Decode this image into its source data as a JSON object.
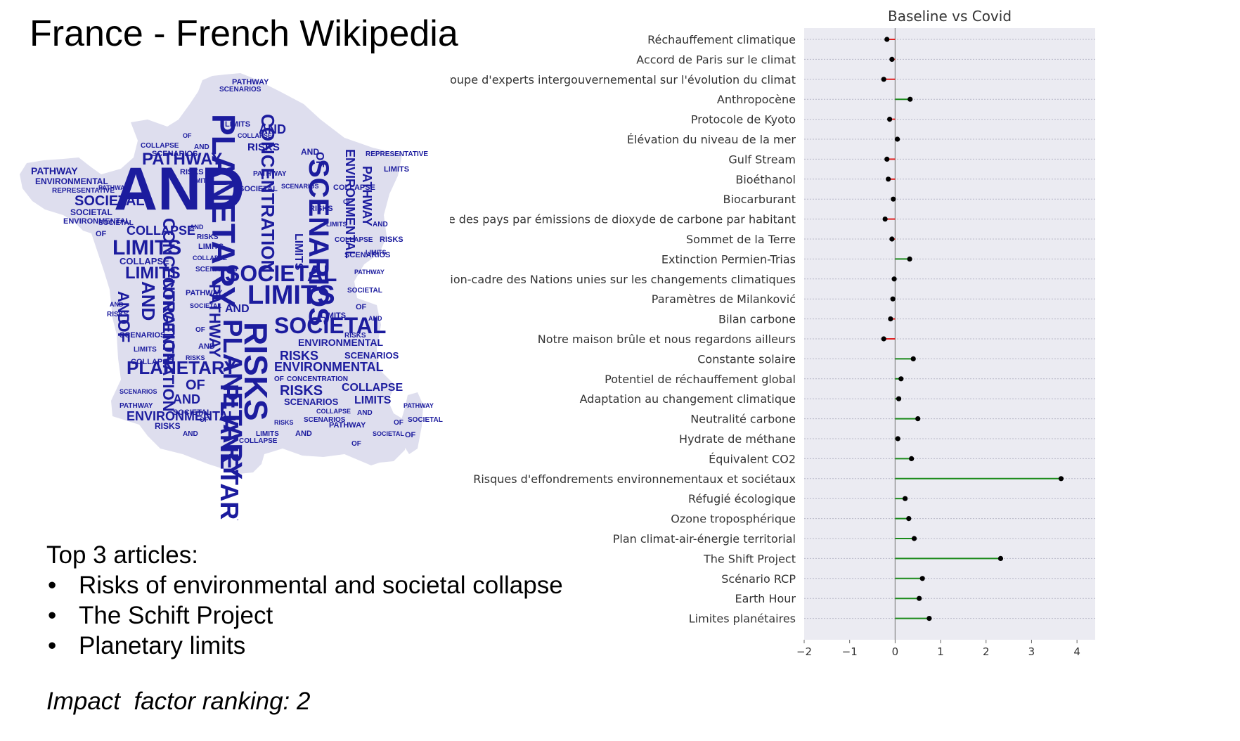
{
  "slide": {
    "title": "France - French Wikipedia",
    "top_articles_heading": "Top 3 articles:",
    "top_articles": [
      "Risks of environmental and societal collapse",
      "The Schift Project",
      "Planetary limits"
    ],
    "bullet": "•",
    "impact_label": "Impact  factor ranking: 2"
  },
  "wordcloud": {
    "color": "#1c1c9e",
    "words": [
      {
        "text": "AND",
        "weight": 10
      },
      {
        "text": "PLANETARY",
        "weight": 8
      },
      {
        "text": "RISKS",
        "weight": 8
      },
      {
        "text": "SCENARIOS",
        "weight": 7
      },
      {
        "text": "CONCENTRATION",
        "weight": 6
      },
      {
        "text": "SOCIETAL",
        "weight": 6
      },
      {
        "text": "LIMITS",
        "weight": 6
      },
      {
        "text": "ENVIRONMENTAL",
        "weight": 5
      },
      {
        "text": "PATHWAY",
        "weight": 5
      },
      {
        "text": "COLLAPSE",
        "weight": 4
      },
      {
        "text": "OF",
        "weight": 4
      },
      {
        "text": "REPRESENTATIVE",
        "weight": 2
      }
    ]
  },
  "chart_data": {
    "type": "dot-line",
    "title": "Baseline vs Covid",
    "xlim": [
      -2,
      4.4
    ],
    "xticks": [
      -2,
      -1,
      0,
      1,
      2,
      3,
      4
    ],
    "tick_labels": [
      "−2",
      "−1",
      "0",
      "1",
      "2",
      "3",
      "4"
    ],
    "grid": true,
    "colors": {
      "positive": "#1a8a1a",
      "negative": "#e02020",
      "point": "#000000",
      "plot_bg": "#ebebf2",
      "grid": "#b8b8c8",
      "zero": "#888888"
    },
    "categories": [
      "Réchauffement climatique",
      "Accord de Paris sur le climat",
      "Groupe d'experts intergouvernemental sur l'évolution du climat",
      "Anthropocène",
      "Protocole de Kyoto",
      "Élévation du niveau de la mer",
      "Gulf Stream",
      "Bioéthanol",
      "Biocarburant",
      "Liste des pays par émissions de dioxyde de carbone par habitant",
      "Sommet de la Terre",
      "Extinction Permien-Trias",
      "Convention-cadre des Nations unies sur les changements climatiques",
      "Paramètres de Milanković",
      "Bilan carbone",
      "Notre maison brûle et nous regardons ailleurs",
      "Constante solaire",
      "Potentiel de réchauffement global",
      "Adaptation au changement climatique",
      "Neutralité carbone",
      "Hydrate de méthane",
      "Équivalent CO2",
      "Risques d'effondrements environnementaux et sociétaux",
      "Réfugié écologique",
      "Ozone troposphérique",
      "Plan climat-air-énergie territorial",
      "The Shift Project",
      "Scénario RCP",
      "Earth Hour",
      "Limites planétaires"
    ],
    "values": [
      -0.18,
      -0.07,
      -0.25,
      0.33,
      -0.12,
      0.05,
      -0.18,
      -0.15,
      -0.04,
      -0.22,
      -0.07,
      0.32,
      -0.02,
      -0.05,
      -0.1,
      -0.25,
      0.4,
      0.13,
      0.08,
      0.5,
      0.06,
      0.36,
      3.65,
      0.22,
      0.3,
      0.42,
      2.32,
      0.6,
      0.53,
      0.75
    ]
  }
}
